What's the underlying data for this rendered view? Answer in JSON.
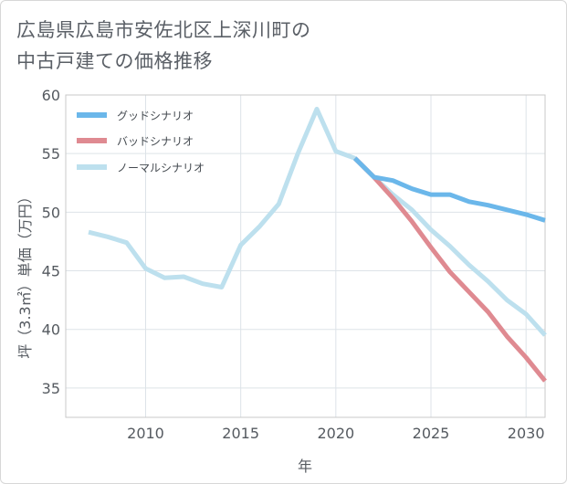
{
  "chart_data": {
    "type": "line",
    "title_lines": [
      "広島県広島市安佐北区上深川町の",
      "中古戸建ての価格推移"
    ],
    "xlabel": "年",
    "ylabel": "坪（3.3㎡）単価（万円）",
    "xlim": [
      2005.8,
      2031
    ],
    "ylim": [
      32.5,
      60
    ],
    "xticks": [
      2010,
      2015,
      2020,
      2025,
      2030
    ],
    "yticks": [
      35,
      40,
      45,
      50,
      55,
      60
    ],
    "series": [
      {
        "name": "グッドシナリオ",
        "color": "#6bb7ea",
        "points": [
          [
            2021,
            54.6
          ],
          [
            2022,
            53.0
          ],
          [
            2023,
            52.7
          ],
          [
            2024,
            52.0
          ],
          [
            2025,
            51.5
          ],
          [
            2026,
            51.5
          ],
          [
            2027,
            50.9
          ],
          [
            2028,
            50.6
          ],
          [
            2029,
            50.2
          ],
          [
            2030,
            49.8
          ],
          [
            2031,
            49.3
          ]
        ]
      },
      {
        "name": "バッドシナリオ",
        "color": "#df8a91",
        "points": [
          [
            2021,
            54.6
          ],
          [
            2022,
            53.0
          ],
          [
            2023,
            51.2
          ],
          [
            2024,
            49.2
          ],
          [
            2025,
            47.0
          ],
          [
            2026,
            44.9
          ],
          [
            2027,
            43.2
          ],
          [
            2028,
            41.5
          ],
          [
            2029,
            39.4
          ],
          [
            2030,
            37.6
          ],
          [
            2031,
            35.6
          ]
        ]
      },
      {
        "name": "ノーマルシナリオ",
        "color": "#bde0ee",
        "points": [
          [
            2007,
            48.3
          ],
          [
            2008,
            47.9
          ],
          [
            2009,
            47.4
          ],
          [
            2010,
            45.2
          ],
          [
            2011,
            44.4
          ],
          [
            2012,
            44.5
          ],
          [
            2013,
            43.9
          ],
          [
            2014,
            43.6
          ],
          [
            2015,
            47.2
          ],
          [
            2016,
            48.8
          ],
          [
            2017,
            50.7
          ],
          [
            2018,
            55.0
          ],
          [
            2019,
            58.8
          ],
          [
            2020,
            55.2
          ],
          [
            2021,
            54.6
          ],
          [
            2022,
            53.0
          ],
          [
            2023,
            51.5
          ],
          [
            2024,
            50.2
          ],
          [
            2025,
            48.5
          ],
          [
            2026,
            47.1
          ],
          [
            2027,
            45.5
          ],
          [
            2028,
            44.1
          ],
          [
            2029,
            42.5
          ],
          [
            2030,
            41.3
          ],
          [
            2031,
            39.5
          ]
        ]
      }
    ]
  }
}
